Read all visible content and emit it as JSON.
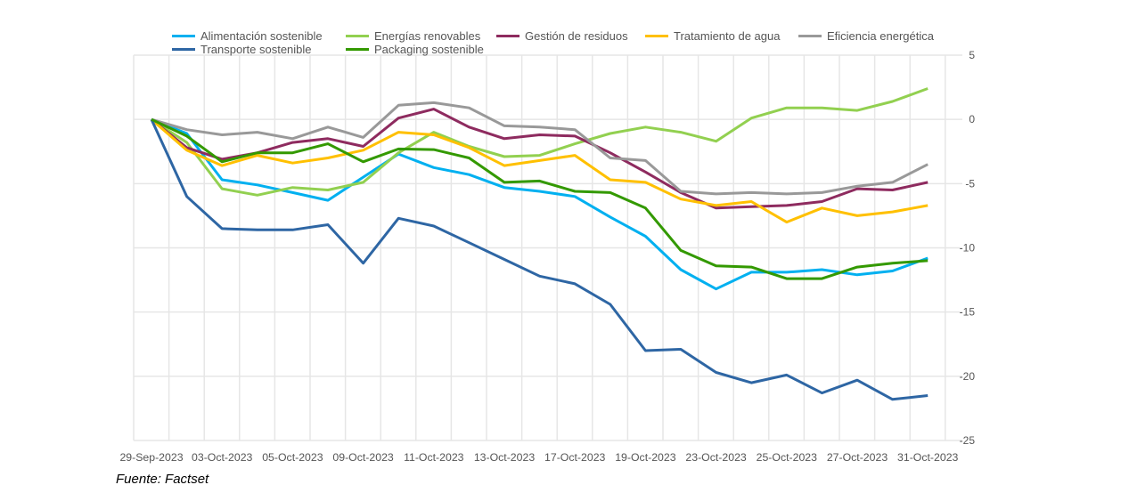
{
  "chart_data": {
    "type": "line",
    "title": "",
    "xlabel": "",
    "ylabel": "",
    "ylim": [
      -25,
      5
    ],
    "yticks": [
      5,
      0,
      -5,
      -10,
      -15,
      -20,
      -25
    ],
    "y_axis_side": "right",
    "grid": true,
    "legend_position": "top",
    "categories": [
      "29-Sep-2023",
      "02-Oct-2023",
      "03-Oct-2023",
      "04-Oct-2023",
      "05-Oct-2023",
      "06-Oct-2023",
      "09-Oct-2023",
      "10-Oct-2023",
      "11-Oct-2023",
      "12-Oct-2023",
      "13-Oct-2023",
      "16-Oct-2023",
      "17-Oct-2023",
      "18-Oct-2023",
      "19-Oct-2023",
      "20-Oct-2023",
      "23-Oct-2023",
      "24-Oct-2023",
      "25-Oct-2023",
      "26-Oct-2023",
      "27-Oct-2023",
      "30-Oct-2023",
      "31-Oct-2023"
    ],
    "xtick_labels": [
      "29-Sep-2023",
      "03-Oct-2023",
      "05-Oct-2023",
      "09-Oct-2023",
      "11-Oct-2023",
      "13-Oct-2023",
      "17-Oct-2023",
      "19-Oct-2023",
      "23-Oct-2023",
      "25-Oct-2023",
      "27-Oct-2023",
      "31-Oct-2023"
    ],
    "series": [
      {
        "name": "Alimentación sostenible",
        "color": "#00b0f0",
        "values": [
          0,
          -1.1,
          -4.7,
          -5.1,
          -5.7,
          -6.3,
          -4.5,
          -2.7,
          -3.75,
          -4.3,
          -5.3,
          -5.6,
          -6.0,
          -7.6,
          -9.1,
          -11.7,
          -13.2,
          -11.9,
          -11.9,
          -11.7,
          -12.1,
          -11.8,
          -10.8
        ]
      },
      {
        "name": "Energías renovables",
        "color": "#92d050",
        "values": [
          0,
          -1.8,
          -5.4,
          -5.9,
          -5.3,
          -5.5,
          -4.9,
          -2.6,
          -1.0,
          -2.1,
          -2.9,
          -2.8,
          -1.9,
          -1.1,
          -0.6,
          -1.0,
          -1.7,
          0.1,
          0.9,
          0.9,
          0.7,
          1.4,
          2.4
        ]
      },
      {
        "name": "Gestión de residuos",
        "color": "#8e2b5f",
        "values": [
          0,
          -2.2,
          -3.1,
          -2.6,
          -1.8,
          -1.5,
          -2.1,
          0.1,
          0.8,
          -0.6,
          -1.5,
          -1.2,
          -1.3,
          -2.6,
          -4.1,
          -5.7,
          -6.9,
          -6.8,
          -6.7,
          -6.4,
          -5.4,
          -5.5,
          -4.9
        ]
      },
      {
        "name": "Tratamiento de agua",
        "color": "#ffc000",
        "values": [
          0,
          -2.4,
          -3.6,
          -2.8,
          -3.4,
          -3.0,
          -2.4,
          -1.0,
          -1.2,
          -2.2,
          -3.6,
          -3.2,
          -2.8,
          -4.7,
          -4.9,
          -6.2,
          -6.7,
          -6.4,
          -8.0,
          -6.9,
          -7.5,
          -7.2,
          -6.7
        ]
      },
      {
        "name": "Eficiencia energética",
        "color": "#999999",
        "values": [
          0,
          -0.8,
          -1.2,
          -1.0,
          -1.5,
          -0.6,
          -1.4,
          1.1,
          1.3,
          0.9,
          -0.5,
          -0.6,
          -0.8,
          -3.0,
          -3.2,
          -5.6,
          -5.8,
          -5.7,
          -5.8,
          -5.7,
          -5.2,
          -4.9,
          -3.5
        ]
      },
      {
        "name": "Transporte sostenible",
        "color": "#2e66a4",
        "values": [
          0,
          -6.0,
          -8.5,
          -8.6,
          -8.6,
          -8.2,
          -11.2,
          -7.7,
          -8.3,
          -9.6,
          -10.9,
          -12.2,
          -12.8,
          -14.4,
          -18.0,
          -17.9,
          -19.7,
          -20.5,
          -19.9,
          -21.3,
          -20.3,
          -21.8,
          -21.5
        ]
      },
      {
        "name": "Packaging sostenible",
        "color": "#339900",
        "values": [
          0,
          -1.3,
          -3.3,
          -2.6,
          -2.6,
          -1.9,
          -3.3,
          -2.3,
          -2.35,
          -3.0,
          -4.9,
          -4.8,
          -5.6,
          -5.7,
          -6.9,
          -10.2,
          -11.4,
          -11.5,
          -12.4,
          -12.4,
          -11.5,
          -11.2,
          -11.0
        ]
      }
    ]
  },
  "source": "Fuente: Factset"
}
